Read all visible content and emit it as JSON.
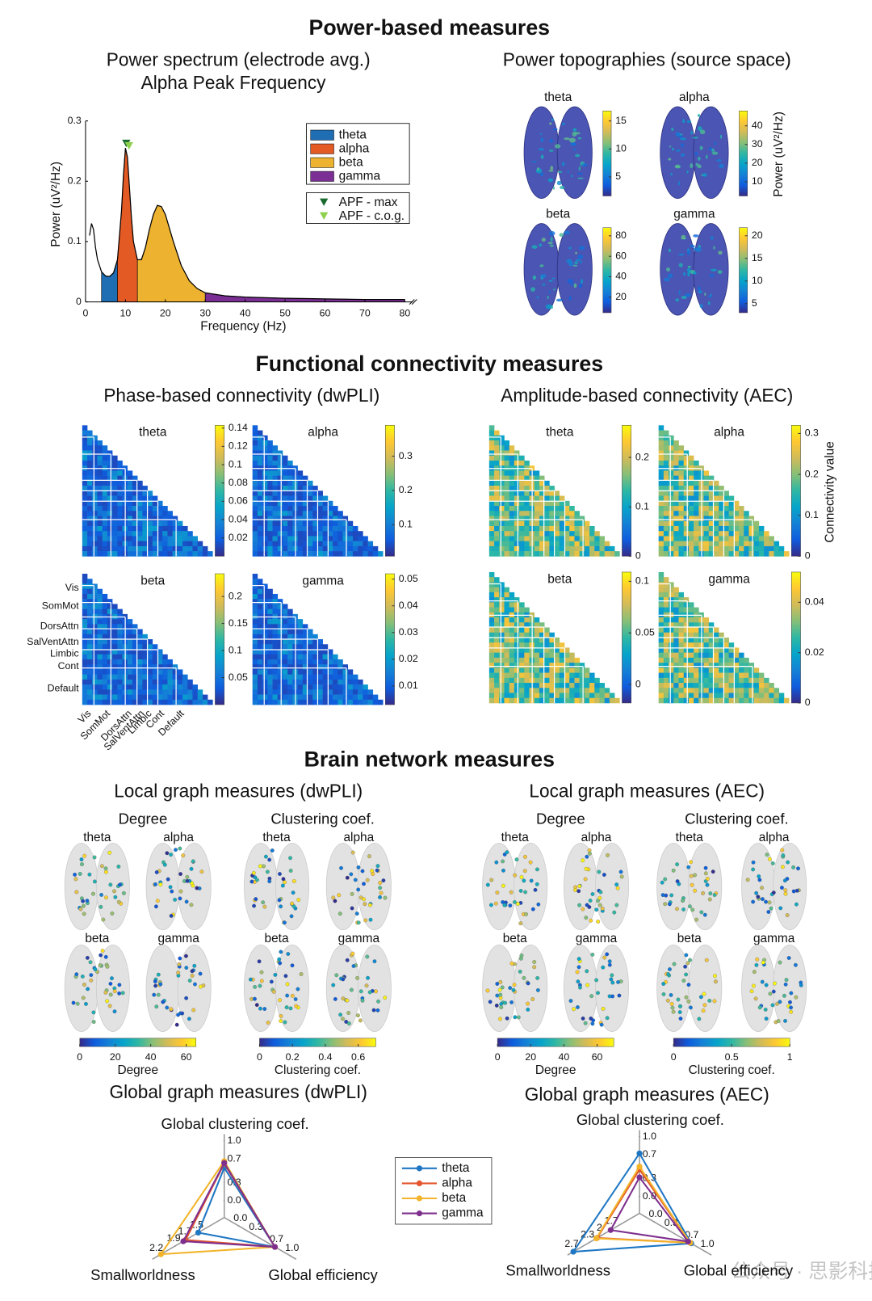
{
  "headings": {
    "power": "Power-based measures",
    "connectivity": "Functional connectivity measures",
    "network": "Brain network measures"
  },
  "watermark": "公众号 · 思影科技",
  "chart_data": [
    {
      "type": "spectrum",
      "title": "Power spectrum (electrode avg.)",
      "subtitle": "Alpha Peak Frequency",
      "x_label": "Frequency (Hz)",
      "y_label": "Power (uV²/Hz)",
      "line_color": "#000000",
      "x": [
        1,
        1.5,
        2,
        2.5,
        3,
        4,
        5,
        6,
        7,
        8,
        9,
        9.5,
        10,
        10.5,
        11,
        11.5,
        12,
        13,
        14,
        15,
        16,
        17,
        18,
        19,
        20,
        22,
        24,
        26,
        28,
        30,
        35,
        40,
        50,
        60,
        70,
        80
      ],
      "values": [
        0.11,
        0.13,
        0.12,
        0.09,
        0.07,
        0.05,
        0.043,
        0.042,
        0.048,
        0.07,
        0.15,
        0.21,
        0.255,
        0.24,
        0.19,
        0.14,
        0.1,
        0.07,
        0.07,
        0.09,
        0.12,
        0.145,
        0.16,
        0.158,
        0.145,
        0.1,
        0.06,
        0.035,
        0.022,
        0.015,
        0.01,
        0.008,
        0.006,
        0.005,
        0.004,
        0.004
      ],
      "bands": [
        {
          "name": "theta",
          "color": "#1f6db3",
          "from": 4,
          "to": 8
        },
        {
          "name": "alpha",
          "color": "#e35a25",
          "from": 8,
          "to": 13
        },
        {
          "name": "beta",
          "color": "#edb230",
          "from": 13,
          "to": 30
        },
        {
          "name": "gamma",
          "color": "#7b2f94",
          "from": 30,
          "to": 80
        }
      ],
      "markers": [
        {
          "name": "APF - max",
          "color": "#1a6b2e",
          "x": 10.2,
          "y": 0.262
        },
        {
          "name": "APF - c.o.g.",
          "color": "#8fd14f",
          "x": 10.9,
          "y": 0.258
        }
      ],
      "xlim": [
        0,
        82
      ],
      "xticks": [
        0,
        10,
        20,
        30,
        40,
        50,
        60,
        70,
        80
      ],
      "ylim": [
        0,
        0.3
      ],
      "yticks": [
        0,
        0.1,
        0.2,
        0.3
      ]
    },
    {
      "type": "topography",
      "title": "Power topographies (source space)",
      "colorbar_label": "Power (uV²/Hz)",
      "panels": [
        {
          "name": "theta",
          "clim": [
            1.6,
            16.8
          ],
          "ticks": [
            5,
            10,
            15
          ]
        },
        {
          "name": "alpha",
          "clim": [
            2.4,
            48
          ],
          "ticks": [
            10,
            20,
            30,
            40
          ]
        },
        {
          "name": "beta",
          "clim": [
            4.8,
            88
          ],
          "ticks": [
            20,
            40,
            60,
            80
          ]
        },
        {
          "name": "gamma",
          "clim": [
            3,
            21.8
          ],
          "ticks": [
            5,
            10,
            15,
            20
          ]
        }
      ]
    },
    {
      "type": "connectivity",
      "title": "Phase-based connectivity (dwPLI)",
      "network_labels": [
        "Vis",
        "SomMot",
        "DorsAttn",
        "SalVentAttn",
        "Limbic",
        "Cont",
        "Default"
      ],
      "panels": [
        {
          "name": "theta",
          "clim": [
            0,
            0.143
          ],
          "ticks": [
            0.02,
            0.04,
            0.06,
            0.08,
            0.1,
            0.12,
            0.14
          ]
        },
        {
          "name": "alpha",
          "clim": [
            0.008,
            0.39
          ],
          "ticks": [
            0.1,
            0.2,
            0.3
          ]
        },
        {
          "name": "beta",
          "clim": [
            0,
            0.242
          ],
          "ticks": [
            0.05,
            0.1,
            0.15,
            0.2
          ]
        },
        {
          "name": "gamma",
          "clim": [
            0.003,
            0.052
          ],
          "ticks": [
            0.01,
            0.02,
            0.03,
            0.04,
            0.05
          ]
        }
      ]
    },
    {
      "type": "connectivity",
      "title": "Amplitude-based connectivity (AEC)",
      "colorbar_label": "Connectivity value",
      "panels": [
        {
          "name": "theta",
          "clim": [
            0,
            0.265
          ],
          "ticks": [
            0,
            0.1,
            0.2
          ]
        },
        {
          "name": "alpha",
          "clim": [
            0,
            0.32
          ],
          "ticks": [
            0,
            0.1,
            0.2,
            0.3
          ]
        },
        {
          "name": "beta",
          "clim": [
            -0.018,
            0.109
          ],
          "ticks": [
            0,
            0.05,
            0.1
          ]
        },
        {
          "name": "gamma",
          "clim": [
            0,
            0.052
          ],
          "ticks": [
            0,
            0.02,
            0.04
          ]
        }
      ]
    },
    {
      "type": "local_graph",
      "title": "Local graph measures (dwPLI)",
      "measures": [
        {
          "name": "Degree",
          "bands": [
            "theta",
            "alpha",
            "beta",
            "gamma"
          ],
          "colorbar_label": "Degree",
          "clim": [
            0,
            65.5
          ],
          "ticks": [
            0,
            20,
            40,
            60
          ]
        },
        {
          "name": "Clustering coef.",
          "bands": [
            "theta",
            "alpha",
            "beta",
            "gamma"
          ],
          "colorbar_label": "Clustering coef.",
          "clim": [
            0,
            0.707
          ],
          "ticks": [
            0,
            0.2,
            0.4,
            0.6
          ]
        }
      ]
    },
    {
      "type": "local_graph",
      "title": "Local graph measures (AEC)",
      "measures": [
        {
          "name": "Degree",
          "bands": [
            "theta",
            "alpha",
            "beta",
            "gamma"
          ],
          "colorbar_label": "Degree",
          "clim": [
            0,
            70
          ],
          "ticks": [
            0,
            20,
            40,
            60
          ]
        },
        {
          "name": "Clustering coef.",
          "bands": [
            "theta",
            "alpha",
            "beta",
            "gamma"
          ],
          "colorbar_label": "Clustering coef.",
          "clim": [
            0,
            1
          ],
          "ticks": [
            0,
            0.5,
            1
          ]
        }
      ]
    },
    {
      "type": "radar",
      "title": "Global graph measures (dwPLI)",
      "axes": [
        {
          "name": "Global clustering coef.",
          "lim": [
            0,
            1
          ],
          "ticks": [
            {
              "value": 0,
              "label": "0.0"
            },
            0.3,
            0.7,
            {
              "value": 1,
              "label": "1.0"
            }
          ]
        },
        {
          "name": "Global efficiency",
          "lim": [
            0,
            1
          ],
          "ticks": [
            {
              "value": 0,
              "label": "0.0"
            },
            0.3,
            0.7,
            {
              "value": 1,
              "label": "1.0"
            }
          ]
        },
        {
          "name": "Smallworldness",
          "lim": [
            1.3,
            2.2
          ],
          "ticks": [
            1.5,
            1.7,
            1.9,
            2.2
          ]
        }
      ],
      "series": [
        {
          "name": "theta",
          "color": "#1f77c4",
          "values": [
            0.55,
            0.7,
            1.5
          ]
        },
        {
          "name": "alpha",
          "color": "#e4572e",
          "values": [
            0.62,
            0.7,
            1.72
          ]
        },
        {
          "name": "beta",
          "color": "#f2b42a",
          "values": [
            0.66,
            0.7,
            2.15
          ]
        },
        {
          "name": "gamma",
          "color": "#7e2f8e",
          "values": [
            0.63,
            0.7,
            1.76
          ]
        }
      ]
    },
    {
      "type": "radar",
      "title": "Global graph measures (AEC)",
      "axes": [
        {
          "name": "Global clustering coef.",
          "lim": [
            0,
            1
          ],
          "ticks": [
            {
              "value": 0,
              "label": "0.0"
            },
            0.3,
            0.7,
            {
              "value": 1,
              "label": "1.0"
            }
          ]
        },
        {
          "name": "Global efficiency",
          "lim": [
            0,
            1
          ],
          "ticks": [
            {
              "value": 0,
              "label": "0.0"
            },
            0.3,
            0.7,
            {
              "value": 1,
              "label": "1.0"
            }
          ]
        },
        {
          "name": "Smallworldness",
          "lim": [
            1.4,
            2.7
          ],
          "ticks": [
            1.7,
            2.0,
            2.3,
            2.7
          ]
        }
      ],
      "series": [
        {
          "color": "#1f77c4",
          "values": [
            0.72,
            0.72,
            2.7
          ]
        },
        {
          "color": "#e4572e",
          "values": [
            0.45,
            0.7,
            2.1
          ]
        },
        {
          "color": "#f2b42a",
          "values": [
            0.5,
            0.7,
            2.12
          ]
        },
        {
          "color": "#7e2f8e",
          "values": [
            0.32,
            0.66,
            1.76
          ]
        }
      ]
    }
  ]
}
